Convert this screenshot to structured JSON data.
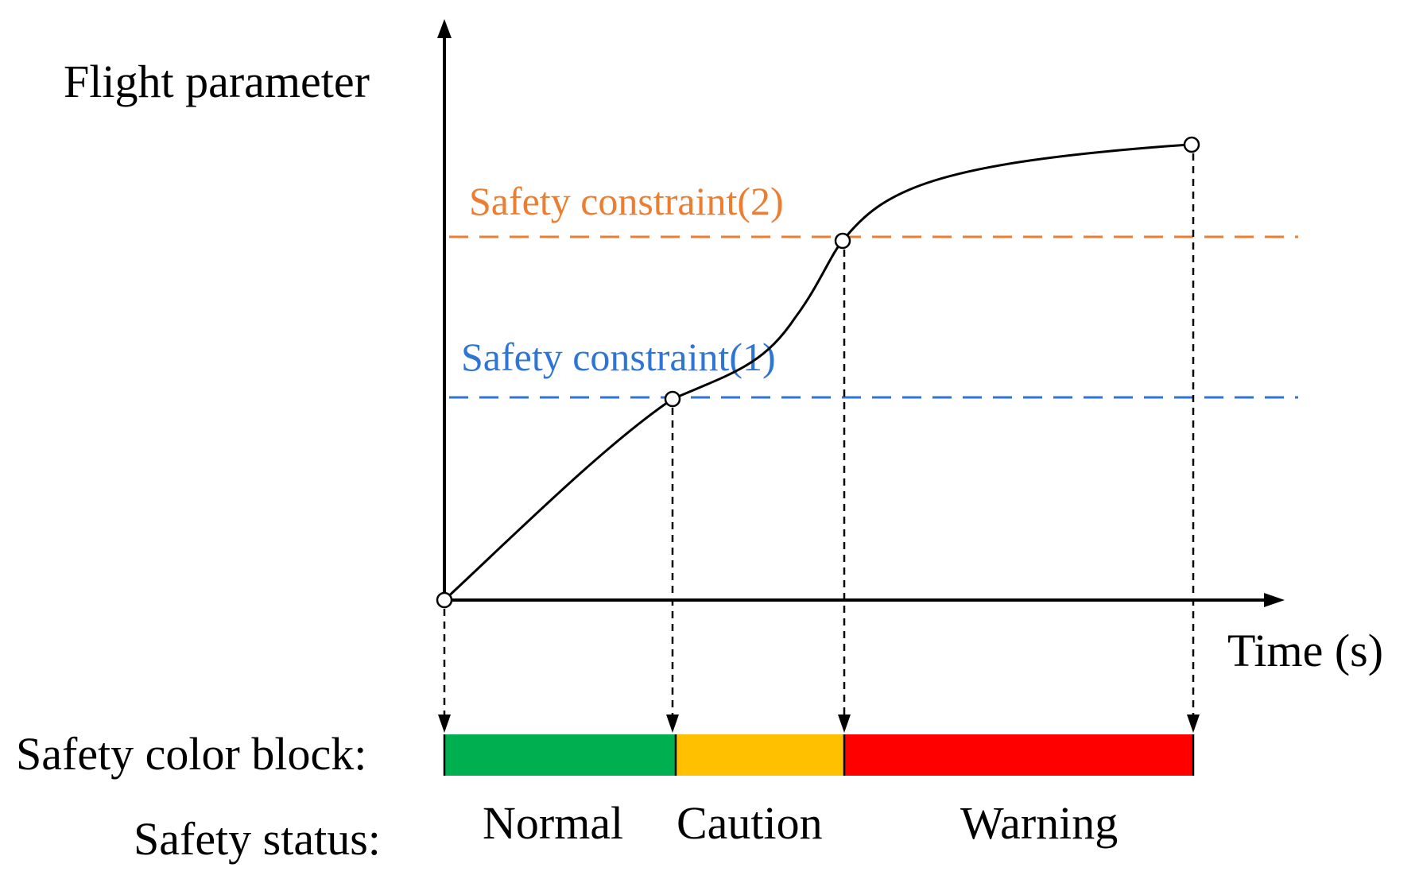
{
  "diagram": {
    "y_axis_label": "Flight parameter",
    "x_axis_label": "Time (s)",
    "constraints": [
      {
        "label": "Safety constraint(2)",
        "color": "#ED7D31"
      },
      {
        "label": "Safety constraint(1)",
        "color": "#2E75D6"
      }
    ],
    "block_label": "Safety color block:",
    "status_label": "Safety status:",
    "statuses": [
      {
        "label": "Normal",
        "color": "#00B050"
      },
      {
        "label": "Caution",
        "color": "#FFC000"
      },
      {
        "label": "Warning",
        "color": "#FF0000"
      }
    ],
    "curve_color": "#000000"
  }
}
